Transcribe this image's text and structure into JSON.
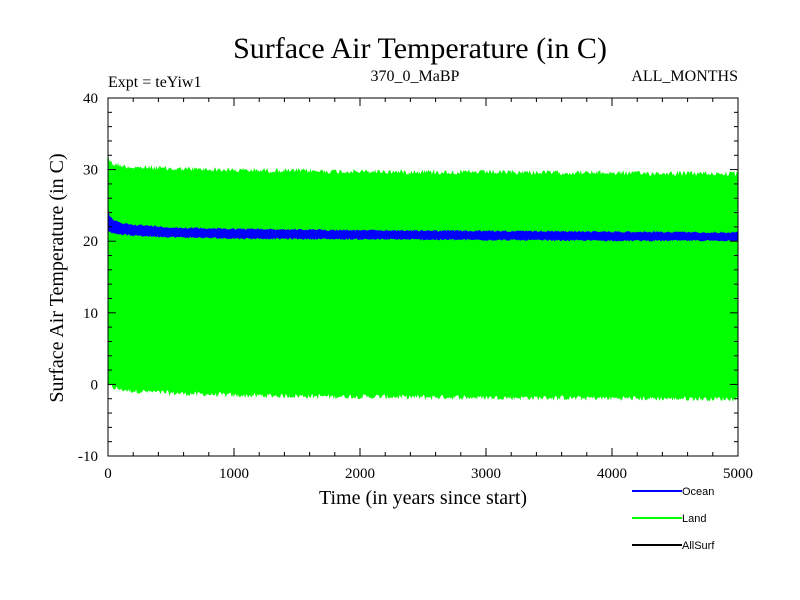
{
  "chart_data": {
    "type": "area",
    "title": "Surface Air Temperature (in C)",
    "subtitle_left": "Expt = teYiw1",
    "subtitle_center": "370_0_MaBP",
    "subtitle_right": "ALL_MONTHS",
    "xlabel": "Time (in years since start)",
    "ylabel": "Surface Air Temperature (in C)",
    "xlim": [
      0,
      5000
    ],
    "ylim": [
      -10,
      40
    ],
    "x_ticks": [
      0,
      1000,
      2000,
      3000,
      4000,
      5000
    ],
    "y_ticks": [
      -10,
      0,
      10,
      20,
      30,
      40
    ],
    "legend_position": "bottom-right, below plot",
    "series": [
      {
        "name": "Land",
        "color": "#00ff00",
        "band_x": [
          0,
          10,
          50,
          100,
          200,
          500,
          1000,
          2000,
          3000,
          4000,
          5000
        ],
        "band_upper": [
          32.5,
          31.5,
          31.0,
          30.8,
          30.6,
          30.4,
          30.2,
          30.0,
          29.9,
          29.8,
          29.7
        ],
        "band_lower": [
          -0.5,
          -0.5,
          -0.8,
          -1.0,
          -1.2,
          -1.5,
          -1.8,
          -2.0,
          -2.1,
          -2.2,
          -2.3
        ]
      },
      {
        "name": "Ocean",
        "color": "#0000ff",
        "band_x": [
          0,
          10,
          50,
          100,
          200,
          500,
          1000,
          2000,
          3000,
          4000,
          5000
        ],
        "band_upper": [
          25.0,
          23.5,
          23.0,
          22.6,
          22.4,
          22.0,
          21.8,
          21.6,
          21.5,
          21.4,
          21.3
        ],
        "band_lower": [
          21.5,
          21.2,
          21.0,
          20.9,
          20.7,
          20.5,
          20.3,
          20.2,
          20.1,
          20.0,
          20.0
        ]
      },
      {
        "name": "AllSurf",
        "color": "#000000",
        "band_x": [],
        "band_upper": [],
        "band_lower": []
      }
    ]
  }
}
